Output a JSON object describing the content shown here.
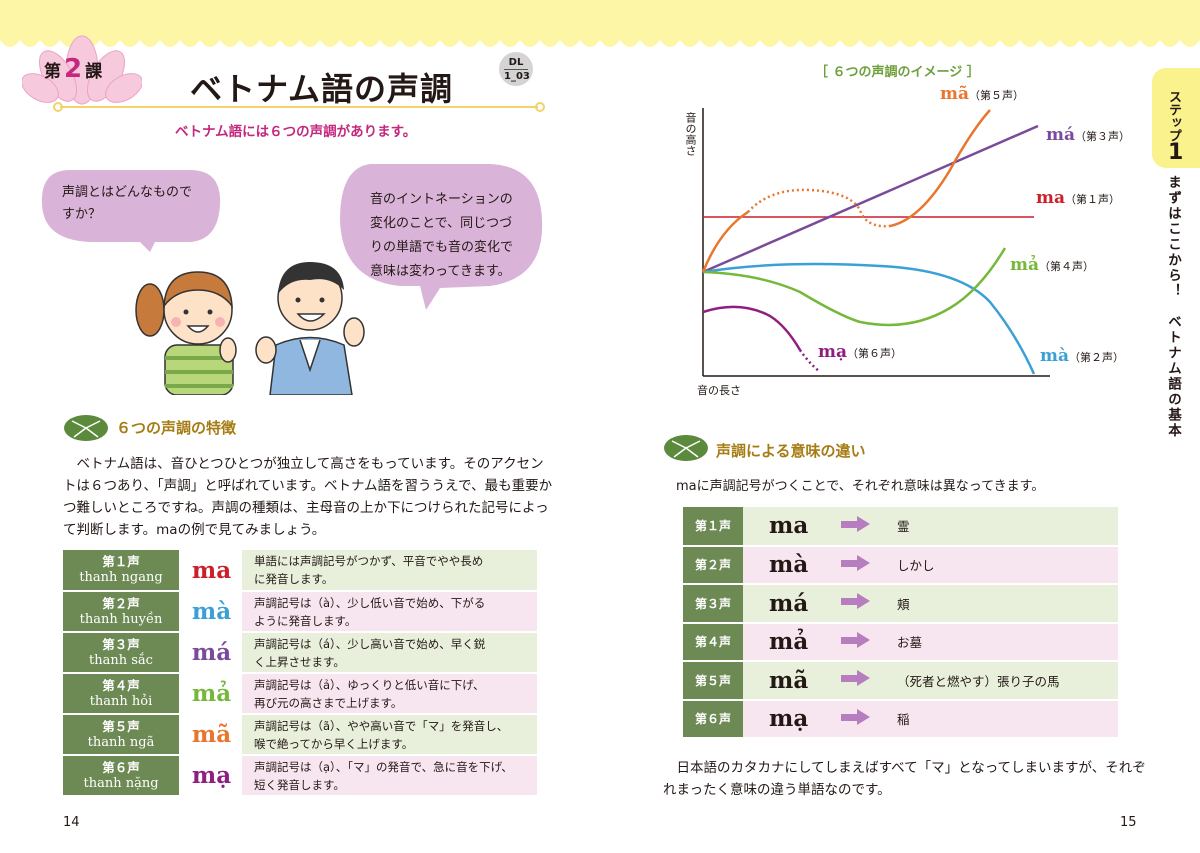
{
  "colors": {
    "tone1": "#cc1f2c",
    "tone2": "#3aa0d6",
    "tone3": "#7a4b9a",
    "tone4": "#75b83a",
    "tone5": "#e8762c",
    "tone6": "#8f1f7e",
    "accent": "#c4287e",
    "heading": "#a67c15",
    "table_head": "#6d8a55"
  },
  "header": {
    "lesson_prefix": "第",
    "lesson_num": "2",
    "lesson_suffix": "課",
    "title": "ベトナム語の声調",
    "dl_top": "DL",
    "dl_bottom": "1_03",
    "subtitle": "ベトナム語には６つの声調があります。"
  },
  "bubbles": {
    "left": [
      "声調とはどんなもので",
      "すか？"
    ],
    "right": [
      "音のイントネーションの",
      "変化のことで、同じつづ",
      "りの単語でも音の変化で",
      "意味は変わってきます。"
    ]
  },
  "section1": {
    "heading": "６つの声調の特徴",
    "lines": [
      "　ベトナム語は、音ひとつひとつが独立して高さをもっています。そのアクセン",
      "トは６つあり、「声調」と呼ばれています。ベトナム語を習ううえで、最も重要か",
      "つ難しいところですね。声調の種類は、主母音の上か下につけられた記号によっ",
      "て判断します。maの例で見てみましょう。"
    ]
  },
  "tone_table": [
    {
      "name_jp": "第１声",
      "name_vn": "thanh ngang",
      "word": "ma",
      "desc": "単語には声調記号がつかず、平音でやや長め\nに発音します。"
    },
    {
      "name_jp": "第２声",
      "name_vn": "thanh huyền",
      "word": "mà",
      "desc": "声調記号は（à）、少し低い音で始め、下がる\nように発音します。"
    },
    {
      "name_jp": "第３声",
      "name_vn": "thanh sắc",
      "word": "má",
      "desc": "声調記号は（á）、少し高い音で始め、早く鋭\nく上昇させます。"
    },
    {
      "name_jp": "第４声",
      "name_vn": "thanh hỏi",
      "word": "mả",
      "desc": "声調記号は（ả）、ゆっくりと低い音に下げ、\n再び元の高さまで上げます。"
    },
    {
      "name_jp": "第５声",
      "name_vn": "thanh ngã",
      "word": "mã",
      "desc": "声調記号は（ã）、やや高い音で「マ」を発音し、\n喉で絶ってから早く上げます。"
    },
    {
      "name_jp": "第６声",
      "name_vn": "thanh nặng",
      "word": "mạ",
      "desc": "声調記号は（ạ）、「マ」の発音で、急に音を下げ、\n短く発音します。"
    }
  ],
  "page_left": "14",
  "page_right": "15",
  "chart_data": {
    "type": "line",
    "title": "［ ６つの声調のイメージ ］",
    "ylabel": "音の高さ",
    "xlabel": "音の長さ",
    "series": [
      {
        "name": "ma",
        "tone": "（第１声）",
        "color": "#cc1f2c"
      },
      {
        "name": "mà",
        "tone": "（第２声）",
        "color": "#3aa0d6"
      },
      {
        "name": "má",
        "tone": "（第３声）",
        "color": "#7a4b9a"
      },
      {
        "name": "mả",
        "tone": "（第４声）",
        "color": "#75b83a"
      },
      {
        "name": "mã",
        "tone": "（第５声）",
        "color": "#e8762c"
      },
      {
        "name": "mạ",
        "tone": "（第６声）",
        "color": "#8f1f7e"
      }
    ]
  },
  "section2": {
    "heading": "声調による意味の違い",
    "intro": "maに声調記号がつくことで、それぞれ意味は異なってきます。",
    "rows": [
      {
        "tone": "第１声",
        "word": "ma",
        "meaning": "霊"
      },
      {
        "tone": "第２声",
        "word": "mà",
        "meaning": "しかし"
      },
      {
        "tone": "第３声",
        "word": "má",
        "meaning": "頬"
      },
      {
        "tone": "第４声",
        "word": "mả",
        "meaning": "お墓"
      },
      {
        "tone": "第５声",
        "word": "mã",
        "meaning": "（死者と燃やす）張り子の馬"
      },
      {
        "tone": "第６声",
        "word": "mạ",
        "meaning": "稲"
      }
    ],
    "outro": [
      "　日本語のカタカナにしてしまえばすべて「マ」となってしまいますが、それぞ",
      "れまったく意味の違う単語なのです。"
    ]
  },
  "side": {
    "step_label": "ステップ",
    "step_num": "1",
    "text": "まずはここから！　ベトナム語の基本"
  }
}
